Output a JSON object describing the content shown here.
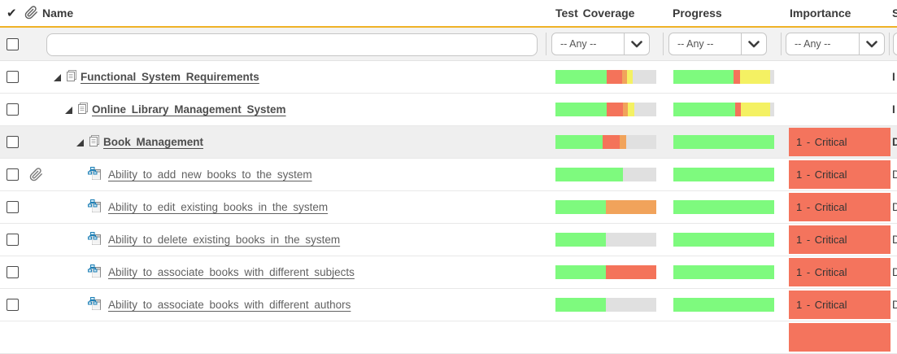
{
  "header": {
    "check_column_icon": "checkmark-icon",
    "attachment_column_icon": "paperclip-icon",
    "name_label": "Name",
    "test_coverage_label": "Test Coverage",
    "progress_label": "Progress",
    "importance_label": "Importance",
    "status_label_partial": "S"
  },
  "filter_row": {
    "name_filter_value": "",
    "any_option": "-- Any --"
  },
  "colors": {
    "accent": "#EFB227",
    "green": "#7EFA7E",
    "tomato": "#F4735A",
    "orange": "#F1A35B",
    "yellow": "#F4F163",
    "gray": "#E0E0E0",
    "importance_bg": "#F4745D",
    "row_highlight": "#EFEFEF"
  },
  "rows": [
    {
      "type": "summary",
      "level": 0,
      "name": "Functional System Requirements",
      "attachment": false,
      "highlighted": false,
      "test_coverage": [
        {
          "c": "green",
          "p": 51
        },
        {
          "c": "tomato",
          "p": 15
        },
        {
          "c": "orange",
          "p": 5
        },
        {
          "c": "yellow",
          "p": 6
        },
        {
          "c": "gray",
          "p": 23
        }
      ],
      "progress": [
        {
          "c": "green",
          "p": 60
        },
        {
          "c": "tomato",
          "p": 6
        },
        {
          "c": "yellow",
          "p": 30
        },
        {
          "c": "gray",
          "p": 4
        }
      ],
      "importance": "",
      "importance_cell": false,
      "status": "I"
    },
    {
      "type": "summary",
      "level": 1,
      "name": "Online Library Management System",
      "attachment": false,
      "highlighted": false,
      "test_coverage": [
        {
          "c": "green",
          "p": 51
        },
        {
          "c": "tomato",
          "p": 16
        },
        {
          "c": "orange",
          "p": 5
        },
        {
          "c": "yellow",
          "p": 6
        },
        {
          "c": "gray",
          "p": 22
        }
      ],
      "progress": [
        {
          "c": "green",
          "p": 61
        },
        {
          "c": "tomato",
          "p": 6
        },
        {
          "c": "yellow",
          "p": 29
        },
        {
          "c": "gray",
          "p": 4
        }
      ],
      "importance": "",
      "importance_cell": false,
      "status": "I"
    },
    {
      "type": "summary",
      "level": 2,
      "name": "Book Management",
      "attachment": false,
      "highlighted": true,
      "test_coverage": [
        {
          "c": "green",
          "p": 47
        },
        {
          "c": "tomato",
          "p": 17
        },
        {
          "c": "orange",
          "p": 6
        },
        {
          "c": "gray",
          "p": 30
        }
      ],
      "progress": [
        {
          "c": "green",
          "p": 100
        }
      ],
      "importance": "1 - Critical",
      "importance_cell": true,
      "status": "D"
    },
    {
      "type": "leaf",
      "name": "Ability to add new books to the system",
      "attachment": true,
      "highlighted": false,
      "test_coverage": [
        {
          "c": "green",
          "p": 67
        },
        {
          "c": "gray",
          "p": 33
        }
      ],
      "progress": [
        {
          "c": "green",
          "p": 100
        }
      ],
      "importance": "1 - Critical",
      "importance_cell": true,
      "status": "D"
    },
    {
      "type": "leaf",
      "name": "Ability to edit existing books in the system",
      "attachment": false,
      "highlighted": false,
      "test_coverage": [
        {
          "c": "green",
          "p": 50
        },
        {
          "c": "orange",
          "p": 50
        }
      ],
      "progress": [
        {
          "c": "green",
          "p": 100
        }
      ],
      "importance": "1 - Critical",
      "importance_cell": true,
      "status": "D"
    },
    {
      "type": "leaf",
      "name": "Ability to delete existing books in the system",
      "attachment": false,
      "highlighted": false,
      "test_coverage": [
        {
          "c": "green",
          "p": 50
        },
        {
          "c": "gray",
          "p": 50
        }
      ],
      "progress": [
        {
          "c": "green",
          "p": 100
        }
      ],
      "importance": "1 - Critical",
      "importance_cell": true,
      "status": "D"
    },
    {
      "type": "leaf",
      "name": "Ability to associate books with different subjects",
      "attachment": false,
      "highlighted": false,
      "test_coverage": [
        {
          "c": "green",
          "p": 50
        },
        {
          "c": "tomato",
          "p": 50
        }
      ],
      "progress": [
        {
          "c": "green",
          "p": 100
        }
      ],
      "importance": "1 - Critical",
      "importance_cell": true,
      "status": "D"
    },
    {
      "type": "leaf",
      "name": "Ability to associate books with different authors",
      "attachment": false,
      "highlighted": false,
      "test_coverage": [
        {
          "c": "green",
          "p": 50
        },
        {
          "c": "gray",
          "p": 50
        }
      ],
      "progress": [
        {
          "c": "green",
          "p": 100
        }
      ],
      "importance": "1 - Critical",
      "importance_cell": true,
      "status": "D"
    },
    {
      "type": "partial",
      "name": "",
      "attachment": false,
      "highlighted": false,
      "test_coverage": [],
      "progress": [],
      "importance": "",
      "importance_cell": true,
      "status": ""
    }
  ]
}
